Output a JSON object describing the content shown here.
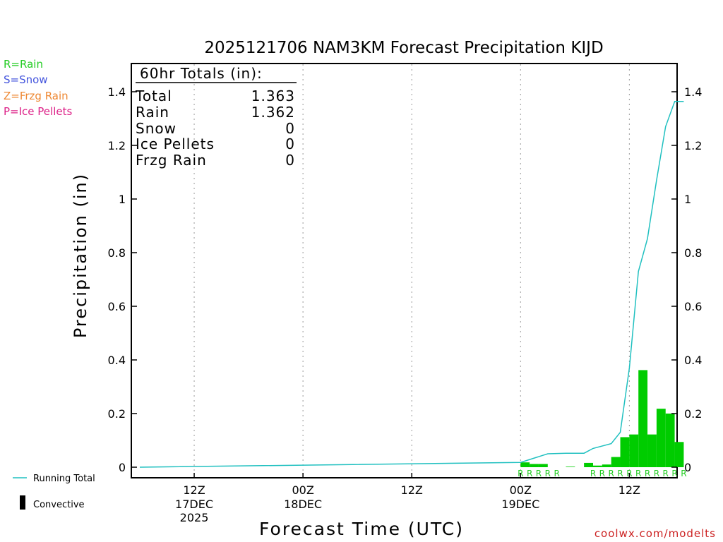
{
  "chart_data": {
    "type": "bar",
    "title": "2025121706 NAM3KM Forecast Precipitation KIJD",
    "xlabel": "Forecast Time (UTC)",
    "ylabel": "Precipitation (in)",
    "ylim": [
      0,
      1.5
    ],
    "xlim": [
      0,
      60
    ],
    "y_ticks": [
      0,
      0.2,
      0.4,
      0.6,
      0.8,
      1,
      1.2,
      1.4
    ],
    "y_tick_labels": [
      "0",
      "0.2",
      "0.4",
      "0.6",
      "0.8",
      "1",
      "1.2",
      "1.4"
    ],
    "x_ticks": [
      {
        "hour": 6,
        "label": "12Z",
        "sub1": "17DEC",
        "sub2": "2025"
      },
      {
        "hour": 18,
        "label": "00Z",
        "sub1": "18DEC",
        "sub2": ""
      },
      {
        "hour": 30,
        "label": "12Z",
        "sub1": "",
        "sub2": ""
      },
      {
        "hour": 42,
        "label": "00Z",
        "sub1": "19DEC",
        "sub2": ""
      },
      {
        "hour": 54,
        "label": "12Z",
        "sub1": "",
        "sub2": ""
      }
    ],
    "grid": "vertical dotted at x ticks",
    "bar_color": "#00cc00",
    "line_color": "#20c0c0",
    "bars": [
      {
        "hour": 42,
        "value": 0.018
      },
      {
        "hour": 43,
        "value": 0.012
      },
      {
        "hour": 44,
        "value": 0.012
      },
      {
        "hour": 47,
        "value": 0.002
      },
      {
        "hour": 49,
        "value": 0.016
      },
      {
        "hour": 50,
        "value": 0.006
      },
      {
        "hour": 51,
        "value": 0.01
      },
      {
        "hour": 52,
        "value": 0.038
      },
      {
        "hour": 53,
        "value": 0.112
      },
      {
        "hour": 54,
        "value": 0.122
      },
      {
        "hour": 55,
        "value": 0.362
      },
      {
        "hour": 56,
        "value": 0.122
      },
      {
        "hour": 57,
        "value": 0.218
      },
      {
        "hour": 58,
        "value": 0.2
      },
      {
        "hour": 59,
        "value": 0.094
      }
    ],
    "running_total": {
      "name": "Running Total",
      "x": [
        0,
        42,
        45,
        47,
        49,
        50,
        52,
        53,
        54,
        55,
        56,
        57,
        58,
        59,
        60
      ],
      "y": [
        0,
        0.018,
        0.05,
        0.052,
        0.052,
        0.07,
        0.088,
        0.13,
        0.37,
        0.73,
        0.852,
        1.07,
        1.27,
        1.364,
        1.364
      ]
    },
    "precip_type_markers": {
      "letter": "R",
      "color": "#22cc22",
      "hours": [
        42,
        43,
        44,
        45,
        46,
        50,
        51,
        52,
        53,
        54,
        55,
        56,
        57,
        58,
        59,
        60
      ]
    }
  },
  "totals_box": {
    "heading": "60hr Totals (in):",
    "rows": [
      {
        "label": "Total",
        "value": "1.363"
      },
      {
        "label": "Rain",
        "value": "1.362"
      },
      {
        "label": "Snow",
        "value": "0"
      },
      {
        "label": "Ice Pellets",
        "value": "0"
      },
      {
        "label": "Frzg Rain",
        "value": "0"
      }
    ]
  },
  "type_legend": [
    {
      "text": "R=Rain",
      "color": "#22cc22"
    },
    {
      "text": "S=Snow",
      "color": "#4455dd"
    },
    {
      "text": "Z=Frzg Rain",
      "color": "#ee8833"
    },
    {
      "text": "P=Ice Pellets",
      "color": "#dd2288"
    }
  ],
  "bottom_legend": {
    "running_total": "Running Total",
    "convective": "Convective"
  },
  "credit": "coolwx.com/modelts"
}
